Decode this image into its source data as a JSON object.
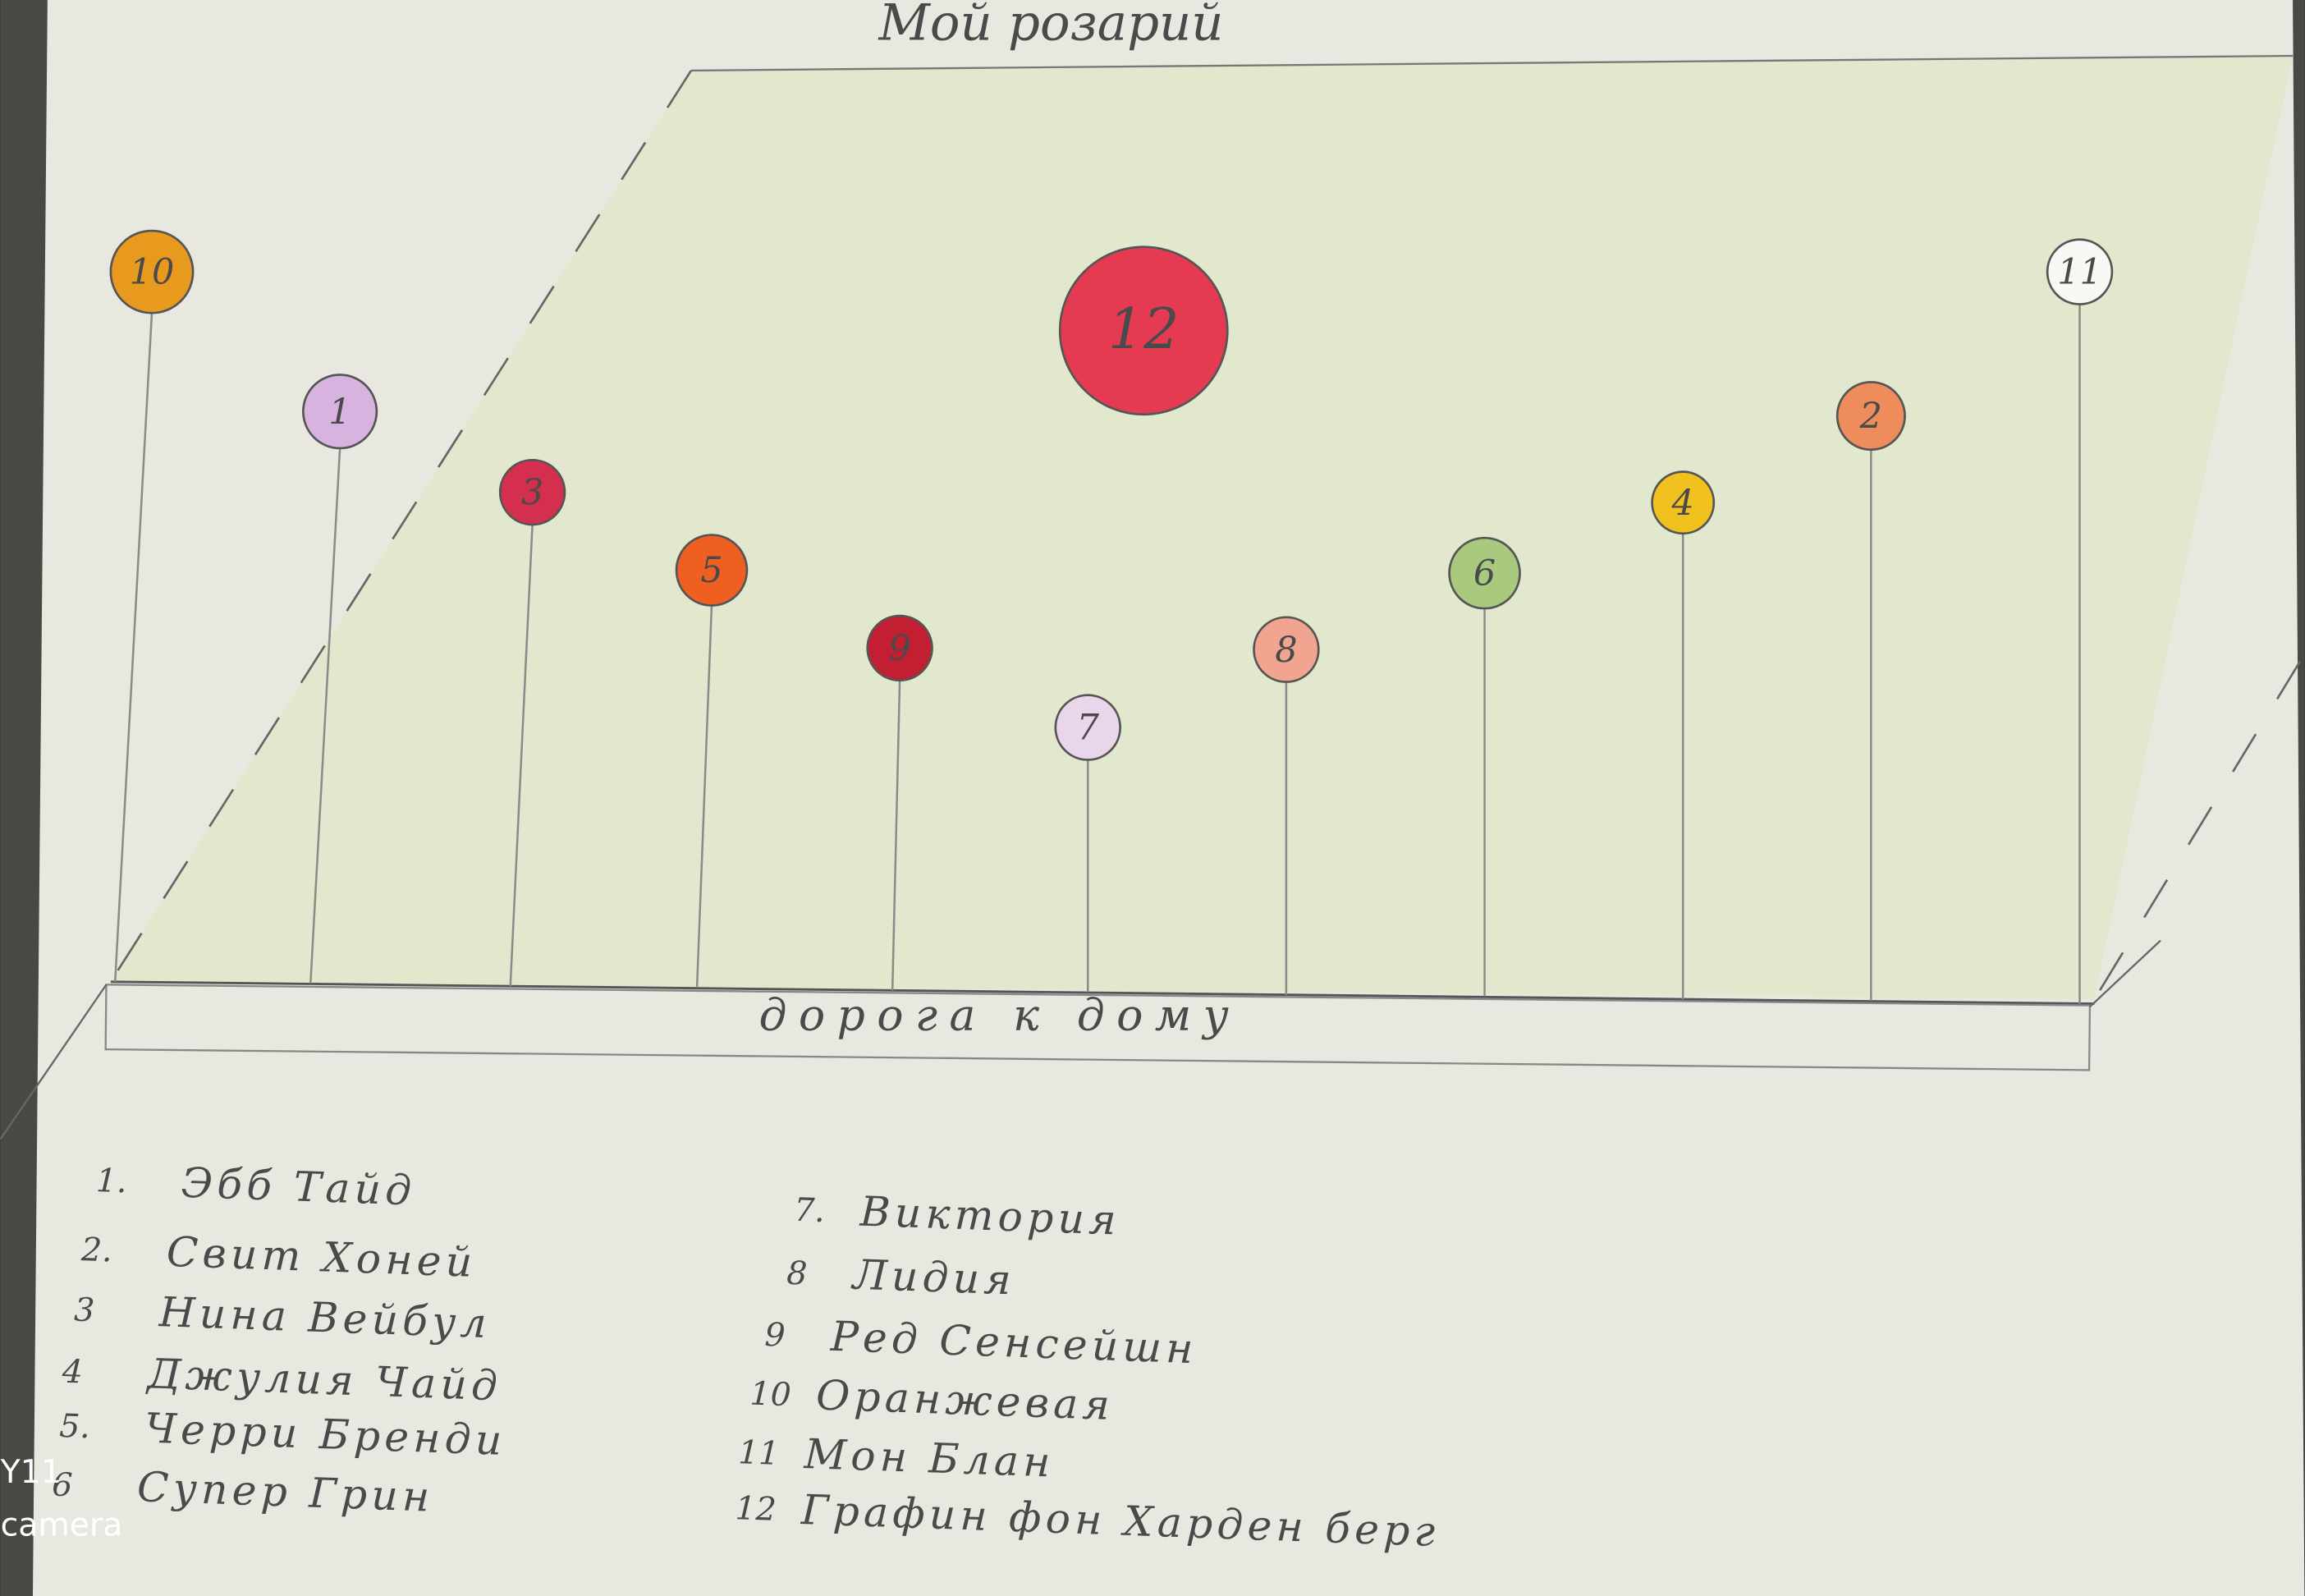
{
  "title": "Мой розарий",
  "road": "дорога к дому",
  "nodes": [
    {
      "label": "10",
      "color": "#e89a1e"
    },
    {
      "label": "1",
      "color": "#d9b3e0"
    },
    {
      "label": "3",
      "color": "#d42f4e"
    },
    {
      "label": "5",
      "color": "#ef5f22"
    },
    {
      "label": "9",
      "color": "#c21f33"
    },
    {
      "label": "7",
      "color": "#e9d6ea"
    },
    {
      "label": "8",
      "color": "#f1a591"
    },
    {
      "label": "6",
      "color": "#a9c97f"
    },
    {
      "label": "4",
      "color": "#f1c21f"
    },
    {
      "label": "2",
      "color": "#ef8c5c"
    },
    {
      "label": "11",
      "color": "#f8f8f4"
    },
    {
      "label": "12",
      "color": "#e53b52"
    }
  ],
  "legend": [
    {
      "number": "1.",
      "name": "Эбб Тайд"
    },
    {
      "number": "2.",
      "name": "Свит Хоней"
    },
    {
      "number": "3",
      "name": "Нина Вейбул"
    },
    {
      "number": "4",
      "name": "Джулия Чайд"
    },
    {
      "number": "5.",
      "name": "Черри Бренди"
    },
    {
      "number": "6",
      "name": "Супер Грин"
    },
    {
      "number": "7.",
      "name": "Виктория"
    },
    {
      "number": "8",
      "name": "Лидия"
    },
    {
      "number": "9",
      "name": "Ред Сенсейшн"
    },
    {
      "number": "10",
      "name": "Оранжевая"
    },
    {
      "number": "11",
      "name": "Мон Блан"
    },
    {
      "number": "12",
      "name": "Графин фон Харден берг"
    }
  ],
  "watermark": [
    "Y11",
    "camera"
  ]
}
